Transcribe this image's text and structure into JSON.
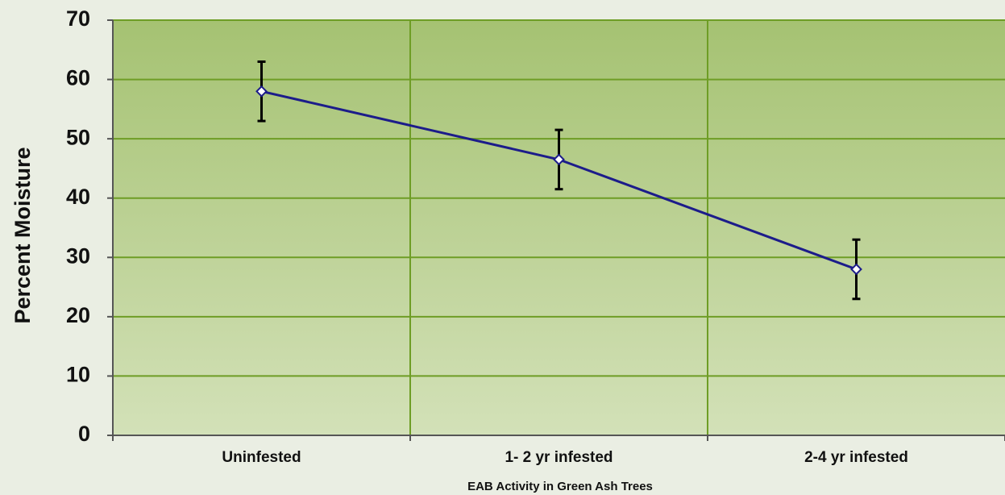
{
  "chart_data": {
    "type": "line",
    "y_label": "Percent Moisture",
    "x_label": "EAB Activity in Green Ash Trees",
    "categories": [
      "Uninfested",
      "1- 2 yr infested",
      "2-4 yr infested"
    ],
    "values": [
      58,
      46.5,
      28
    ],
    "errors": [
      5,
      5,
      5
    ],
    "color": "#1c1c8a",
    "ylim": [
      0,
      70
    ],
    "yticks": [
      0,
      10,
      20,
      30,
      40,
      50,
      60,
      70
    ],
    "grid": true
  }
}
